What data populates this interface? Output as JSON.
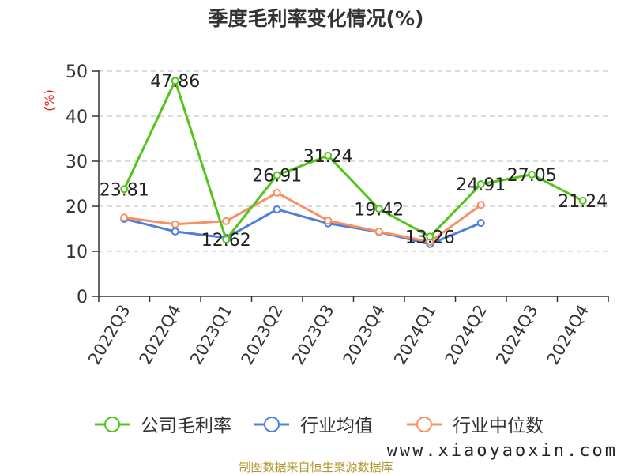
{
  "chart_data": {
    "type": "line",
    "title": "季度毛利率变化情况(%)",
    "ylabel": "(%)",
    "ylim": [
      0,
      50
    ],
    "yticks": [
      0,
      10,
      20,
      30,
      40,
      50
    ],
    "grid": true,
    "legend_position": "bottom",
    "categories": [
      "2022Q3",
      "2022Q4",
      "2023Q1",
      "2023Q2",
      "2023Q3",
      "2023Q4",
      "2024Q1",
      "2024Q2",
      "2024Q3",
      "2024Q4"
    ],
    "series": [
      {
        "name": "公司毛利率",
        "color": "#52c41a",
        "values": [
          23.81,
          47.86,
          12.62,
          26.91,
          31.24,
          19.42,
          13.26,
          24.91,
          27.05,
          21.24
        ],
        "labels": [
          "23.81",
          "47.86",
          "12.62",
          "26.91",
          "31.24",
          "19.42",
          "13.26",
          "24.91",
          "27.05",
          "21.24"
        ]
      },
      {
        "name": "行业均值",
        "color": "#4e7fdc",
        "values": [
          17.2,
          14.4,
          13.0,
          19.3,
          16.2,
          14.3,
          11.6,
          16.3,
          null,
          null
        ]
      },
      {
        "name": "行业中位数",
        "color": "#f79063",
        "values": [
          17.5,
          16.0,
          16.7,
          23.0,
          16.8,
          14.4,
          12.1,
          20.3,
          null,
          null
        ]
      }
    ]
  },
  "watermark": "www.xiaoyaoxin.com",
  "source": "制图数据来自恒生聚源数据库"
}
